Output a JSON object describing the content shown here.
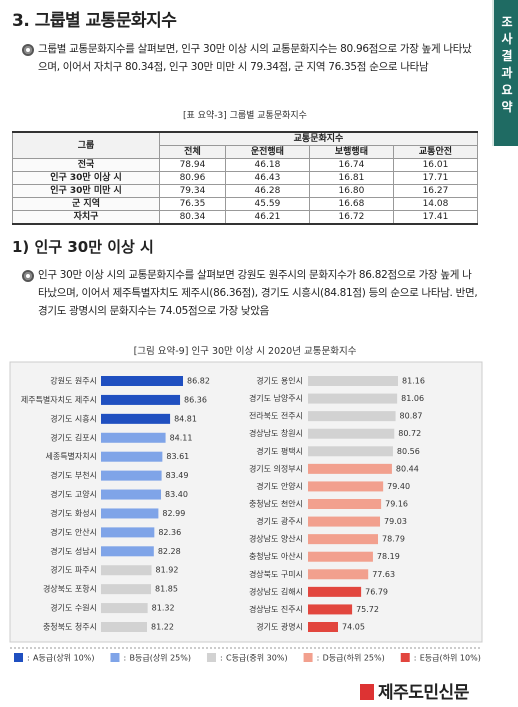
{
  "side_tab": "조사결과요약",
  "section": {
    "title": "3. 그룹별 교통문화지수",
    "paragraph": "그룹별 교통문화지수를 살펴보면, 인구 30만 이상 시의 교통문화지수는 80.96점으로 가장 높게 나타났으며, 이어서 자치구 80.34점, 인구 30만 미만 시 79.34점, 군 지역 76.35점 순으로 나타남"
  },
  "table": {
    "caption": "[표 요약-3] 그룹별 교통문화지수",
    "header": {
      "group": "그룹",
      "index": "교통문화지수",
      "columns": [
        "전체",
        "운전행태",
        "보행행태",
        "교통안전"
      ]
    },
    "rows": [
      [
        "전국",
        "78.94",
        "46.18",
        "16.74",
        "16.01"
      ],
      [
        "인구 30만 이상 시",
        "80.96",
        "46.43",
        "16.81",
        "17.71"
      ],
      [
        "인구 30만 미만 시",
        "79.34",
        "46.28",
        "16.80",
        "16.27"
      ],
      [
        "군 지역",
        "76.35",
        "45.59",
        "16.68",
        "14.08"
      ],
      [
        "자치구",
        "80.34",
        "46.21",
        "16.72",
        "17.41"
      ]
    ]
  },
  "subsection": {
    "title": "1) 인구 30만 이상 시",
    "paragraph": "인구 30만 이상 시의 교통문화지수를 살펴보면 강원도 원주시의 문화지수가 86.82점으로 가장 높게 나타났으며, 이어서 제주특별자치도 제주시(86.36점), 경기도 시흥시(84.81점) 등의 순으로 나타남. 반면, 경기도 광명시의 문화지수는 74.05점으로 가장 낮았음"
  },
  "figure": {
    "caption": "[그림 요약-9] 인구 30만 이상 시 2020년 교통문화지수",
    "columns": [
      {
        "labels": [
          "강원도 원주시",
          "제주특별자치도 제주시",
          "경기도 시흥시",
          "경기도 김포시",
          "세종특별자치시",
          "경기도 부천시",
          "경기도 고양시",
          "경기도 화성시",
          "경기도 안산시",
          "경기도 성남시",
          "경기도 파주시",
          "경상북도 포항시",
          "경기도 수원시",
          "충청북도 청주시"
        ],
        "values": [
          86.82,
          86.36,
          84.81,
          84.11,
          83.61,
          83.49,
          83.4,
          82.99,
          82.36,
          82.28,
          81.92,
          81.85,
          81.32,
          81.22
        ],
        "value_labels": [
          "86.82",
          "86.36",
          "84.81",
          "84.11",
          "83.61",
          "83.49",
          "83.40",
          "82.99",
          "82.36",
          "82.28",
          "81.92",
          "81.85",
          "81.32",
          "81.22"
        ],
        "colors": [
          "#1f4fc0",
          "#1f4fc0",
          "#1f4fc0",
          "#7fa4e8",
          "#7fa4e8",
          "#7fa4e8",
          "#7fa4e8",
          "#7fa4e8",
          "#7fa4e8",
          "#7fa4e8",
          "#d2d2d2",
          "#d2d2d2",
          "#d2d2d2",
          "#d2d2d2"
        ]
      },
      {
        "labels": [
          "경기도 용인시",
          "경기도 남양주시",
          "전라북도 전주시",
          "경상남도 창원시",
          "경기도 평택시",
          "경기도 의정부시",
          "경기도 안양시",
          "충청남도 천안시",
          "경기도 광주시",
          "경상남도 양산시",
          "충청남도 아산시",
          "경상북도 구미시",
          "경상남도 김해시",
          "경상남도 진주시",
          "경기도 광명시"
        ],
        "values": [
          81.16,
          81.06,
          80.87,
          80.72,
          80.56,
          80.44,
          79.4,
          79.16,
          79.03,
          78.79,
          78.19,
          77.63,
          76.79,
          75.72,
          74.05
        ],
        "value_labels": [
          "81.16",
          "81.06",
          "80.87",
          "80.72",
          "80.56",
          "80.44",
          "79.40",
          "79.16",
          "79.03",
          "78.79",
          "78.19",
          "77.63",
          "76.79",
          "75.72",
          "74.05"
        ],
        "colors": [
          "#d2d2d2",
          "#d2d2d2",
          "#d2d2d2",
          "#d2d2d2",
          "#d2d2d2",
          "#f2a08e",
          "#f2a08e",
          "#f2a08e",
          "#f2a08e",
          "#f2a08e",
          "#f2a08e",
          "#f2a08e",
          "#e2463e",
          "#e2463e",
          "#e2463e"
        ]
      }
    ],
    "legend": [
      {
        "name": "A등급(상위 10%)",
        "color": "#1f4fc0"
      },
      {
        "name": "B등급(상위 25%)",
        "color": "#7fa4e8"
      },
      {
        "name": "C등급(중위 30%)",
        "color": "#d2d2d2"
      },
      {
        "name": "D등급(하위 25%)",
        "color": "#f2a08e"
      },
      {
        "name": "E등급(하위 10%)",
        "color": "#e2463e"
      }
    ]
  },
  "logo": "제주도민신문"
}
